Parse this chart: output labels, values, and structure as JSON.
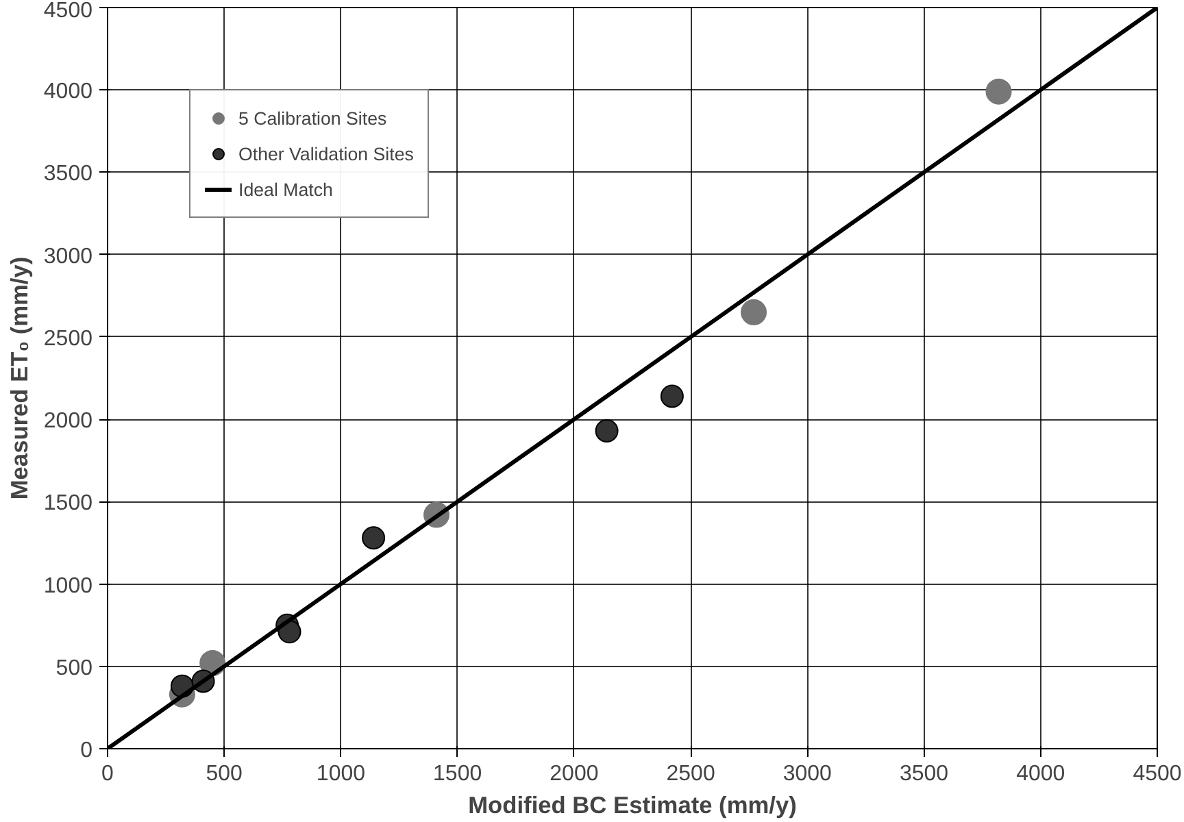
{
  "chart_data": {
    "type": "scatter",
    "xlabel": "Modified BC Estimate (mm/y)",
    "ylabel": "Measured ET₀ (mm/y)",
    "xlim": [
      0,
      4500
    ],
    "ylim": [
      0,
      4500
    ],
    "xticks": [
      0,
      500,
      1000,
      1500,
      2000,
      2500,
      3000,
      3500,
      4000,
      4500
    ],
    "yticks": [
      0,
      500,
      1000,
      1500,
      2000,
      2500,
      3000,
      3500,
      4000,
      4500
    ],
    "grid": true,
    "legend": "top left",
    "marker": "circle",
    "series": [
      {
        "name": "5 Calibration Sites",
        "color": "#777777",
        "x": [
          320,
          450,
          1410,
          2770,
          3820
        ],
        "values": [
          330,
          520,
          1420,
          2650,
          3990
        ]
      },
      {
        "name": "Other Validation Sites",
        "color": "#333333",
        "x": [
          320,
          410,
          770,
          780,
          1140,
          2140,
          2420
        ],
        "values": [
          380,
          410,
          750,
          710,
          1280,
          1930,
          2140
        ]
      },
      {
        "name": "Ideal Match",
        "type": "line",
        "color": "#000000",
        "line_style": "solid",
        "marker": "none",
        "x": [
          0,
          4500
        ],
        "values": [
          0,
          4500
        ]
      }
    ]
  }
}
